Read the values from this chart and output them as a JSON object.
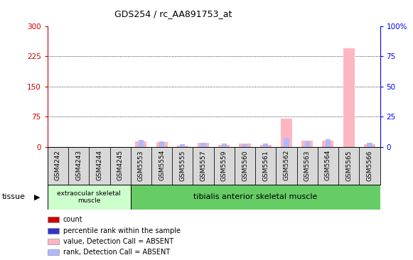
{
  "title": "GDS254 / rc_AA891753_at",
  "samples": [
    "GSM4242",
    "GSM4243",
    "GSM4244",
    "GSM4245",
    "GSM5553",
    "GSM5554",
    "GSM5555",
    "GSM5557",
    "GSM5559",
    "GSM5560",
    "GSM5561",
    "GSM5562",
    "GSM5563",
    "GSM5564",
    "GSM5565",
    "GSM5566"
  ],
  "value_absent": [
    0,
    0,
    0,
    0,
    14,
    12,
    4,
    10,
    5,
    8,
    5,
    70,
    16,
    16,
    245,
    7
  ],
  "rank_absent": [
    0,
    0,
    0,
    0,
    18,
    13,
    7,
    11,
    8,
    7,
    9,
    22,
    13,
    19,
    0,
    10
  ],
  "count_present": [
    0,
    0,
    0,
    0,
    0,
    0,
    0,
    0,
    0,
    0,
    0,
    0,
    0,
    0,
    0,
    0
  ],
  "rank_present": [
    0,
    0,
    0,
    0,
    0,
    0,
    0,
    0,
    0,
    0,
    0,
    0,
    0,
    0,
    0,
    0
  ],
  "ylim_left": [
    0,
    300
  ],
  "ylim_right": [
    0,
    100
  ],
  "yticks_left": [
    0,
    75,
    150,
    225,
    300
  ],
  "yticks_right": [
    0,
    25,
    50,
    75,
    100
  ],
  "tissue_groups": [
    {
      "label": "extraocular skeletal\nmuscle",
      "start": 0,
      "end": 4
    },
    {
      "label": "tibialis anterior skeletal muscle",
      "start": 4,
      "end": 16
    }
  ],
  "tissue_label": "tissue",
  "bar_width": 0.35,
  "color_count": "#cc0000",
  "color_rank_present": "#3333cc",
  "color_value_absent": "#ffb6c1",
  "color_rank_absent": "#b0b8ff",
  "grid_color": "black",
  "tissue_bg1": "#ccffcc",
  "tissue_bg2": "#66cc66",
  "tick_bg": "#d8d8d8",
  "legend_items": [
    {
      "color": "#cc0000",
      "label": "count"
    },
    {
      "color": "#3333cc",
      "label": "percentile rank within the sample"
    },
    {
      "color": "#ffb6c1",
      "label": "value, Detection Call = ABSENT"
    },
    {
      "color": "#b0b8ff",
      "label": "rank, Detection Call = ABSENT"
    }
  ]
}
